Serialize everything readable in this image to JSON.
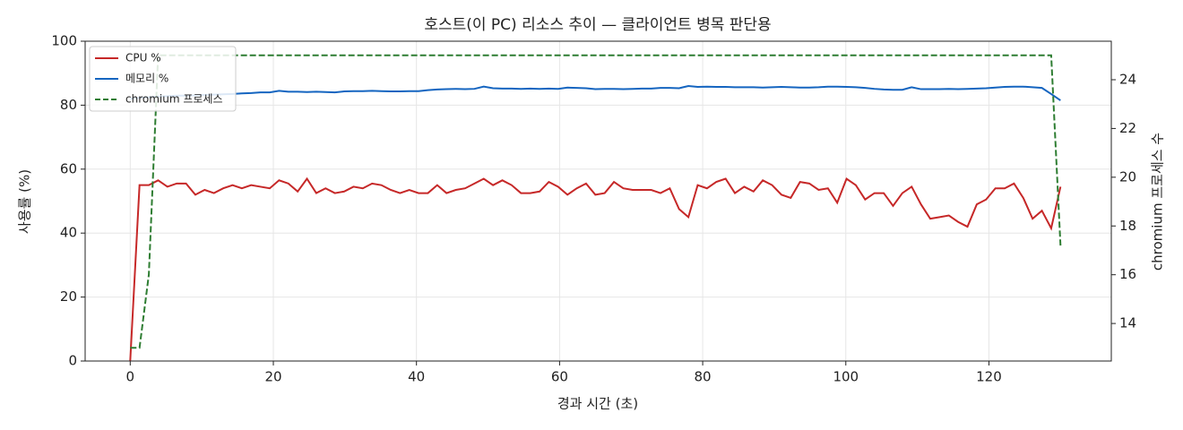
{
  "chart_data": {
    "type": "line",
    "title": "호스트(이 PC) 리소스 추이 — 클라이언트 병목 판단용",
    "xlabel": "경과 시간 (초)",
    "ylabel": "사용률 (%)",
    "y2label": "chromium 프로세스 수",
    "xlim": [
      -6.3,
      137.1
    ],
    "xticks": [
      0,
      20,
      40,
      60,
      80,
      100,
      120
    ],
    "ylim": [
      0,
      100
    ],
    "yticks": [
      0,
      20,
      40,
      60,
      80,
      100
    ],
    "y2lim": [
      12.46,
      25.58
    ],
    "y2ticks": [
      14,
      16,
      18,
      20,
      22,
      24
    ],
    "grid": true,
    "legend": "upper left",
    "x": [
      0,
      1.3,
      2.6,
      3.9,
      5.2,
      6.5,
      7.8,
      9.1,
      10.4,
      11.7,
      13,
      14.3,
      15.6,
      16.9,
      18.2,
      19.5,
      20.8,
      22.1,
      23.4,
      24.7,
      26,
      27.3,
      28.6,
      29.9,
      31.2,
      32.5,
      33.8,
      35.1,
      36.4,
      37.7,
      39,
      40.3,
      41.6,
      42.9,
      44.2,
      45.5,
      46.8,
      48.1,
      49.4,
      50.7,
      52,
      53.3,
      54.6,
      55.9,
      57.2,
      58.5,
      59.8,
      61.1,
      62.4,
      63.7,
      65,
      66.3,
      67.6,
      68.9,
      70.2,
      71.5,
      72.8,
      74.1,
      75.4,
      76.7,
      78,
      79.3,
      80.6,
      81.9,
      83.2,
      84.5,
      85.8,
      87.1,
      88.4,
      89.7,
      91,
      92.3,
      93.6,
      94.9,
      96.2,
      97.5,
      98.8,
      100.1,
      101.4,
      102.7,
      104,
      105.3,
      106.6,
      107.9,
      109.2,
      110.5,
      111.8,
      113.1,
      114.4,
      115.7,
      117,
      118.3,
      119.6,
      120.9,
      122.2,
      123.5,
      124.8,
      126.1,
      127.4,
      128.7,
      130
    ],
    "series": [
      {
        "name": "CPU %",
        "color": "#c62828",
        "linestyle": "solid",
        "values": [
          0,
          55,
          55,
          56.5,
          54.5,
          55.5,
          55.5,
          52,
          53.5,
          52.5,
          54,
          55,
          54,
          55,
          54.5,
          54,
          56.5,
          55.5,
          53,
          57,
          52.5,
          54,
          52.5,
          53,
          54.5,
          54,
          55.5,
          55,
          53.5,
          52.5,
          53.5,
          52.5,
          52.5,
          55,
          52.5,
          53.5,
          54,
          55.5,
          57,
          55,
          56.5,
          55,
          52.5,
          52.5,
          53,
          56,
          54.5,
          52,
          54,
          55.5,
          52,
          52.5,
          56,
          54,
          53.5,
          53.5,
          53.5,
          52.5,
          54,
          47.5,
          45,
          55,
          54,
          56,
          57,
          52.5,
          54.5,
          53,
          56.5,
          55,
          52,
          51,
          56,
          55.5,
          53.5,
          54,
          49.5,
          57,
          55,
          50.5,
          52.5,
          52.5,
          48.5,
          52.5,
          54.5,
          49,
          44.5,
          45,
          45.5,
          43.5,
          42,
          49,
          50.5,
          54,
          54,
          55.5,
          51,
          44.5,
          47,
          41.5,
          54.5
        ]
      },
      {
        "name": "메모리 %",
        "color": "#1565c0",
        "linestyle": "solid",
        "values": [
          82,
          82.3,
          82.5,
          82.7,
          82.8,
          83,
          83,
          83.1,
          83.2,
          83.3,
          83.4,
          83.5,
          83.7,
          83.8,
          84,
          84,
          84.5,
          84.2,
          84.2,
          84.1,
          84.2,
          84.1,
          84,
          84.3,
          84.4,
          84.4,
          84.5,
          84.4,
          84.3,
          84.3,
          84.4,
          84.4,
          84.7,
          84.9,
          85,
          85.1,
          85,
          85.1,
          85.8,
          85.3,
          85.2,
          85.2,
          85.1,
          85.2,
          85.1,
          85.2,
          85.1,
          85.5,
          85.4,
          85.3,
          85,
          85.1,
          85.1,
          85,
          85.1,
          85.2,
          85.2,
          85.4,
          85.4,
          85.3,
          86,
          85.7,
          85.8,
          85.7,
          85.7,
          85.6,
          85.6,
          85.6,
          85.5,
          85.6,
          85.7,
          85.6,
          85.5,
          85.5,
          85.6,
          85.8,
          85.8,
          85.7,
          85.6,
          85.4,
          85.1,
          84.9,
          84.8,
          84.8,
          85.6,
          85,
          85,
          85,
          85.1,
          85,
          85.1,
          85.2,
          85.3,
          85.5,
          85.7,
          85.8,
          85.8,
          85.6,
          85.4,
          83.5,
          81.5
        ]
      },
      {
        "name": "chromium 프로세스",
        "color": "#2e7d32",
        "linestyle": "dashed",
        "axis": "y2",
        "values": [
          13,
          13,
          16,
          25,
          25,
          25,
          25,
          25,
          25,
          25,
          25,
          25,
          25,
          25,
          25,
          25,
          25,
          25,
          25,
          25,
          25,
          25,
          25,
          25,
          25,
          25,
          25,
          25,
          25,
          25,
          25,
          25,
          25,
          25,
          25,
          25,
          25,
          25,
          25,
          25,
          25,
          25,
          25,
          25,
          25,
          25,
          25,
          25,
          25,
          25,
          25,
          25,
          25,
          25,
          25,
          25,
          25,
          25,
          25,
          25,
          25,
          25,
          25,
          25,
          25,
          25,
          25,
          25,
          25,
          25,
          25,
          25,
          25,
          25,
          25,
          25,
          25,
          25,
          25,
          25,
          25,
          25,
          25,
          25,
          25,
          25,
          25,
          25,
          25,
          25,
          25,
          25,
          25,
          25,
          25,
          25,
          25,
          25,
          25,
          25,
          17.2
        ]
      }
    ]
  }
}
